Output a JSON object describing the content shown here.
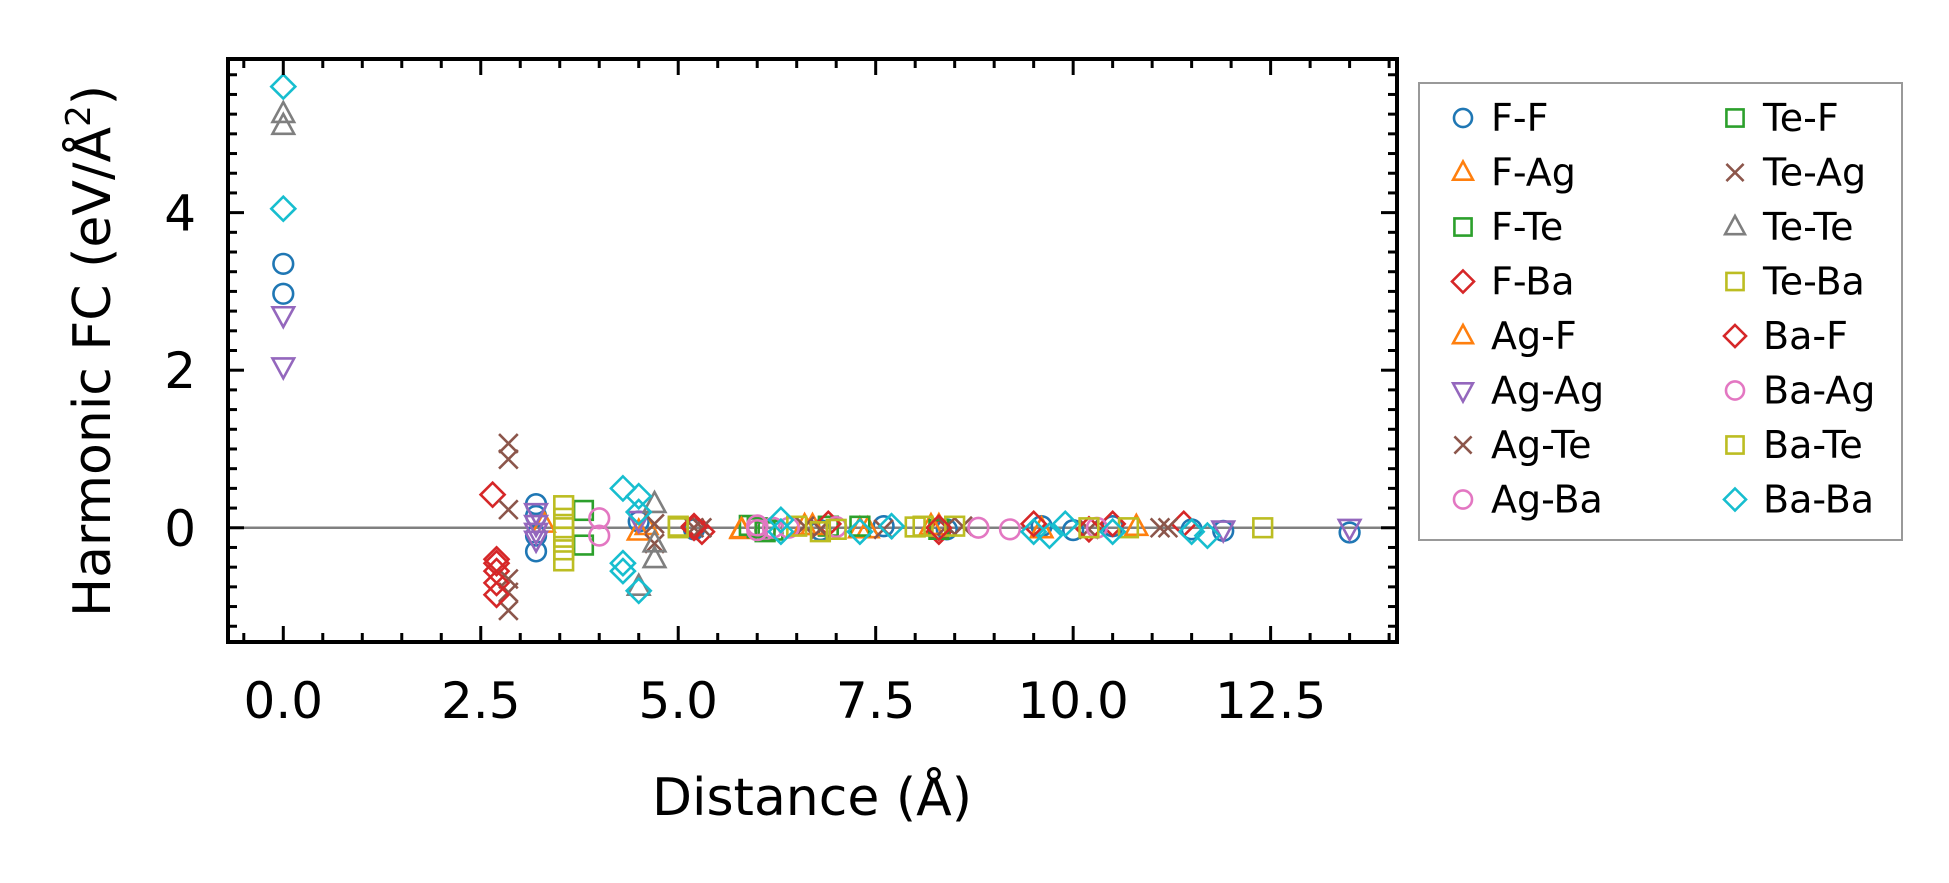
{
  "chart_data": {
    "type": "scatter",
    "title": "",
    "xlabel": "Distance (Å)",
    "ylabel": "Harmonic FC (eV/Å²)",
    "ylabel_main": "Harmonic FC (eV/Å",
    "ylabel_sup": "2",
    "ylabel_end": ")",
    "xlim": [
      -0.7,
      14.1
    ],
    "ylim": [
      -1.45,
      5.95
    ],
    "xticks": [
      0.0,
      2.5,
      5.0,
      7.5,
      10.0,
      12.5
    ],
    "xtick_labels": [
      "0.0",
      "2.5",
      "5.0",
      "7.5",
      "10.0",
      "12.5"
    ],
    "yticks": [
      0,
      2,
      4
    ],
    "ytick_labels": [
      "0",
      "2",
      "4"
    ],
    "zero_line": true,
    "grid": false,
    "legend_position": "outside-right",
    "series": [
      {
        "name": "F-F",
        "marker": "circle",
        "color": "#1f77b4",
        "x": [
          0,
          0,
          3.2,
          3.2,
          3.2,
          3.2,
          4.5,
          5.2,
          6.0,
          6.8,
          7.6,
          8.4,
          9.6,
          10.0,
          10.5,
          11.5,
          11.9,
          13.5
        ],
        "y": [
          3.35,
          2.97,
          0.3,
          0.15,
          -0.1,
          -0.3,
          0.08,
          -0.02,
          0.02,
          -0.03,
          0.02,
          -0.02,
          0.02,
          -0.03,
          0.02,
          -0.02,
          -0.04,
          -0.06
        ]
      },
      {
        "name": "F-Ag",
        "marker": "triangle-up",
        "color": "#ff7f0e",
        "x": [
          3.3,
          4.6,
          5.8,
          6.6,
          7.4,
          8.3,
          9.6,
          10.8
        ],
        "y": [
          0.05,
          0.02,
          -0.02,
          0.02,
          -0.02,
          0.02,
          -0.02,
          0.01
        ]
      },
      {
        "name": "F-Te",
        "marker": "square",
        "color": "#2ca02c",
        "x": [
          3.8,
          3.8,
          5.9,
          6.2,
          6.9
        ],
        "y": [
          0.22,
          -0.22,
          0.03,
          -0.03,
          0.02
        ]
      },
      {
        "name": "F-Ba",
        "marker": "diamond",
        "color": "#d62728",
        "x": [
          2.65,
          2.7,
          2.7,
          5.2,
          5.3,
          6.9,
          8.3,
          9.5,
          10.5,
          11.4
        ],
        "y": [
          0.42,
          -0.4,
          -0.55,
          0.0,
          -0.05,
          0.05,
          -0.05,
          0.05,
          0.05,
          0.05
        ]
      },
      {
        "name": "Ag-F",
        "marker": "triangle-up",
        "color": "#ff7f0e",
        "x": [
          4.5,
          5.8,
          6.7,
          7.3,
          8.2
        ],
        "y": [
          -0.05,
          -0.03,
          0.02,
          -0.02,
          0.02
        ]
      },
      {
        "name": "Ag-Ag",
        "marker": "triangle-down",
        "color": "#9467bd",
        "x": [
          0,
          0,
          3.2,
          3.2,
          3.2,
          3.2,
          4.5,
          11.9,
          13.5
        ],
        "y": [
          2.7,
          2.05,
          0.2,
          0.05,
          -0.05,
          -0.15,
          0.1,
          -0.02,
          0.0
        ]
      },
      {
        "name": "Ag-Te",
        "marker": "x",
        "color": "#8c564b",
        "x": [
          2.85,
          2.85,
          2.85,
          2.85,
          2.85,
          2.85,
          4.7,
          5.3,
          6.6,
          7.6,
          8.6,
          11.2
        ],
        "y": [
          1.07,
          0.87,
          0.23,
          -0.65,
          -0.82,
          -1.05,
          -0.2,
          0.0,
          0.02,
          -0.02,
          0.02,
          0.0
        ]
      },
      {
        "name": "Ag-Ba",
        "marker": "circle",
        "color": "#e377c2",
        "x": [
          4.0,
          4.0,
          6.0,
          6.1,
          6.4,
          7.0
        ],
        "y": [
          0.12,
          -0.1,
          0.02,
          -0.02,
          0.0,
          0.01
        ]
      },
      {
        "name": "Te-F",
        "marker": "square",
        "color": "#2ca02c",
        "x": [
          6.0,
          6.1,
          7.3,
          8.3
        ],
        "y": [
          0.0,
          -0.05,
          0.02,
          -0.02
        ]
      },
      {
        "name": "Te-Ag",
        "marker": "x",
        "color": "#8c564b",
        "x": [
          4.7,
          5.2,
          6.8,
          8.4,
          10.2,
          11.1
        ],
        "y": [
          0.05,
          0.0,
          -0.02,
          0.02,
          -0.02,
          0.0
        ]
      },
      {
        "name": "Te-Te",
        "marker": "triangle-up",
        "color": "#7f7f7f",
        "x": [
          0,
          0,
          4.5,
          4.7,
          4.7,
          4.7
        ],
        "y": [
          5.25,
          5.1,
          -0.75,
          0.3,
          -0.2,
          -0.4
        ]
      },
      {
        "name": "Te-Ba",
        "marker": "square",
        "color": "#bcbd22",
        "x": [
          3.55,
          3.55,
          3.55,
          3.55,
          3.55,
          3.55,
          5.0,
          6.8,
          8.1,
          8.5,
          12.4
        ],
        "y": [
          0.28,
          0.12,
          0.0,
          -0.12,
          -0.28,
          -0.42,
          0.02,
          -0.05,
          0.02,
          0.02,
          0.0
        ]
      },
      {
        "name": "Ba-F",
        "marker": "diamond",
        "color": "#d62728",
        "x": [
          2.7,
          2.7,
          2.7,
          5.2,
          8.3,
          10.2
        ],
        "y": [
          -0.7,
          -0.85,
          -0.45,
          0.02,
          0.0,
          -0.02
        ]
      },
      {
        "name": "Ba-Ag",
        "marker": "circle",
        "color": "#e377c2",
        "x": [
          6.0,
          6.0,
          6.2,
          8.8,
          9.2,
          10.3
        ],
        "y": [
          0.03,
          -0.03,
          0.0,
          0.0,
          -0.02,
          0.0
        ]
      },
      {
        "name": "Ba-Te",
        "marker": "square",
        "color": "#bcbd22",
        "x": [
          5.0,
          6.5,
          7.0,
          8.0,
          10.2,
          10.7
        ],
        "y": [
          0.0,
          0.02,
          -0.02,
          0.01,
          0.0,
          0.0
        ]
      },
      {
        "name": "Ba-Ba",
        "marker": "diamond",
        "color": "#17becf",
        "x": [
          0,
          0,
          4.3,
          4.3,
          4.3,
          4.5,
          4.5,
          4.5,
          6.3,
          6.3,
          7.3,
          7.7,
          9.5,
          9.7,
          9.9,
          10.5,
          11.5,
          11.7
        ],
        "y": [
          5.6,
          4.05,
          0.5,
          -0.45,
          -0.55,
          0.4,
          0.2,
          -0.8,
          0.1,
          -0.05,
          -0.05,
          0.02,
          -0.05,
          -0.1,
          0.05,
          -0.05,
          -0.05,
          -0.1
        ]
      }
    ]
  }
}
